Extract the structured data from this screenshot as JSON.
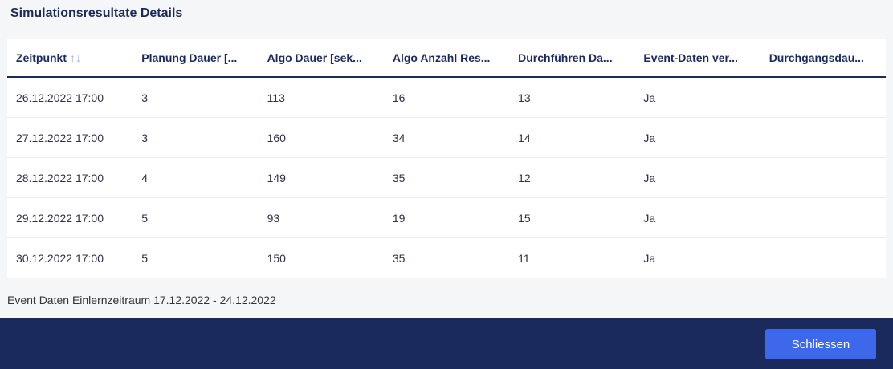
{
  "title": "Simulationsresultate Details",
  "table": {
    "headers": [
      "Zeitpunkt",
      "Planung Dauer [...",
      "Algo Dauer [sek...",
      "Algo Anzahl Res...",
      "Durchführen Da...",
      "Event-Daten ver...",
      "Durchgangsdau..."
    ],
    "sort_icon": "↑↓",
    "rows": [
      [
        "26.12.2022 17:00",
        "3",
        "113",
        "16",
        "13",
        "Ja",
        ""
      ],
      [
        "27.12.2022 17:00",
        "3",
        "160",
        "34",
        "14",
        "Ja",
        ""
      ],
      [
        "28.12.2022 17:00",
        "4",
        "149",
        "35",
        "12",
        "Ja",
        ""
      ],
      [
        "29.12.2022 17:00",
        "5",
        "93",
        "19",
        "15",
        "Ja",
        ""
      ],
      [
        "30.12.2022 17:00",
        "5",
        "150",
        "35",
        "11",
        "Ja",
        ""
      ]
    ]
  },
  "note": "Event Daten Einlernzeitraum 17.12.2022 - 24.12.2022",
  "footer": {
    "close_label": "Schliessen"
  },
  "colors": {
    "primary": "#1b2a5c",
    "button": "#3d68ec"
  }
}
